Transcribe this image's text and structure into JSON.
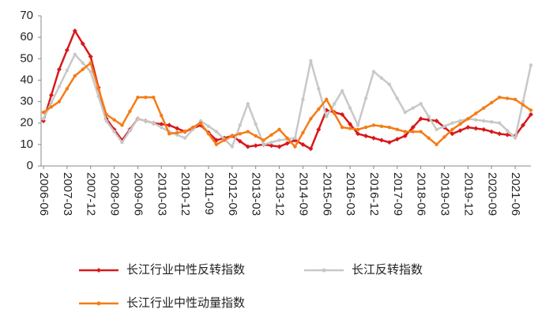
{
  "chart_data": {
    "type": "line",
    "categories": [
      "2006-06",
      null,
      null,
      "2007-03",
      null,
      null,
      "2007-12",
      null,
      null,
      "2008-09",
      null,
      null,
      "2009-06",
      null,
      null,
      "2010-03",
      null,
      null,
      "2010-12",
      null,
      null,
      "2011-09",
      null,
      null,
      "2012-06",
      null,
      null,
      "2013-03",
      null,
      null,
      "2013-12",
      null,
      null,
      "2014-09",
      null,
      null,
      "2015-06",
      null,
      null,
      "2016-03",
      null,
      null,
      "2016-12",
      null,
      null,
      "2017-09",
      null,
      null,
      "2018-06",
      null,
      null,
      "2019-03",
      null,
      null,
      "2019-12",
      null,
      null,
      "2020-09",
      null,
      null,
      "2021-06",
      null,
      null
    ],
    "series": [
      {
        "name": "长江行业中性反转指数",
        "color": "#d7191c",
        "values": [
          21,
          33,
          45,
          54,
          63,
          57,
          51,
          36.5,
          22,
          17,
          12,
          17,
          22,
          21,
          20,
          19.5,
          19,
          17.5,
          16,
          17.5,
          19,
          15.5,
          12,
          13,
          14,
          11.5,
          9,
          9.5,
          10,
          9.5,
          9,
          10.5,
          12,
          10,
          8,
          17,
          26,
          25,
          24,
          19.5,
          15,
          14,
          13,
          12,
          11,
          12.5,
          14,
          18,
          22,
          21.5,
          21,
          18,
          15,
          16.5,
          18,
          17.5,
          17,
          16,
          15,
          14.5,
          14,
          19,
          24
        ]
      },
      {
        "name": "长江反转指数",
        "color": "#c8c8c8",
        "values": [
          22,
          29.5,
          37,
          44.5,
          52,
          48,
          44,
          32.5,
          21,
          16,
          11,
          16.5,
          22,
          21,
          20,
          18,
          16,
          14.5,
          13,
          17,
          21,
          18.5,
          16,
          12.5,
          9,
          19,
          29,
          19.5,
          10,
          11,
          12,
          12.5,
          13,
          31,
          49,
          36,
          23,
          29,
          35,
          27,
          19,
          31.5,
          44,
          41,
          38,
          31.5,
          25,
          27,
          29,
          23,
          17,
          18.5,
          20,
          21,
          22,
          21.5,
          21,
          20.5,
          20,
          16.5,
          13,
          30,
          47
        ]
      },
      {
        "name": "长江行业中性动量指数",
        "color": "#f57c14",
        "values": [
          25,
          27.5,
          30,
          36,
          42,
          45,
          48,
          36,
          24,
          21.5,
          19,
          25.5,
          32,
          32,
          32,
          23.5,
          15,
          15.5,
          16,
          18,
          20,
          15,
          10,
          12,
          14,
          15,
          16,
          14,
          12,
          14.5,
          17,
          13,
          9,
          15.5,
          22,
          26.5,
          31,
          24.5,
          18,
          17.5,
          17,
          18,
          19,
          18.5,
          18,
          17,
          16,
          16,
          16,
          13,
          10,
          13.5,
          17,
          19.5,
          22,
          24.5,
          27,
          29.5,
          32,
          31.5,
          31,
          28.5,
          26
        ]
      }
    ],
    "ylim": [
      0,
      70
    ],
    "yticks": [
      0,
      10,
      20,
      30,
      40,
      50,
      60,
      70
    ],
    "grid": false
  }
}
